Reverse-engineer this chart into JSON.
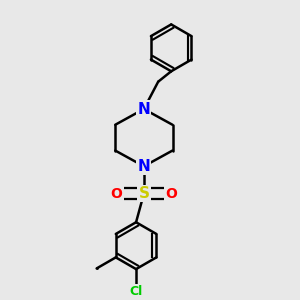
{
  "background_color": "#e8e8e8",
  "atom_colors": {
    "N": "#0000ff",
    "S": "#cccc00",
    "O": "#ff0000",
    "Cl": "#00cc00",
    "C": "#000000"
  },
  "bond_color": "#000000",
  "bond_width": 1.8,
  "font_size_N": 11,
  "font_size_S": 11,
  "font_size_O": 10,
  "font_size_Cl": 9,
  "font_size_Me": 9
}
